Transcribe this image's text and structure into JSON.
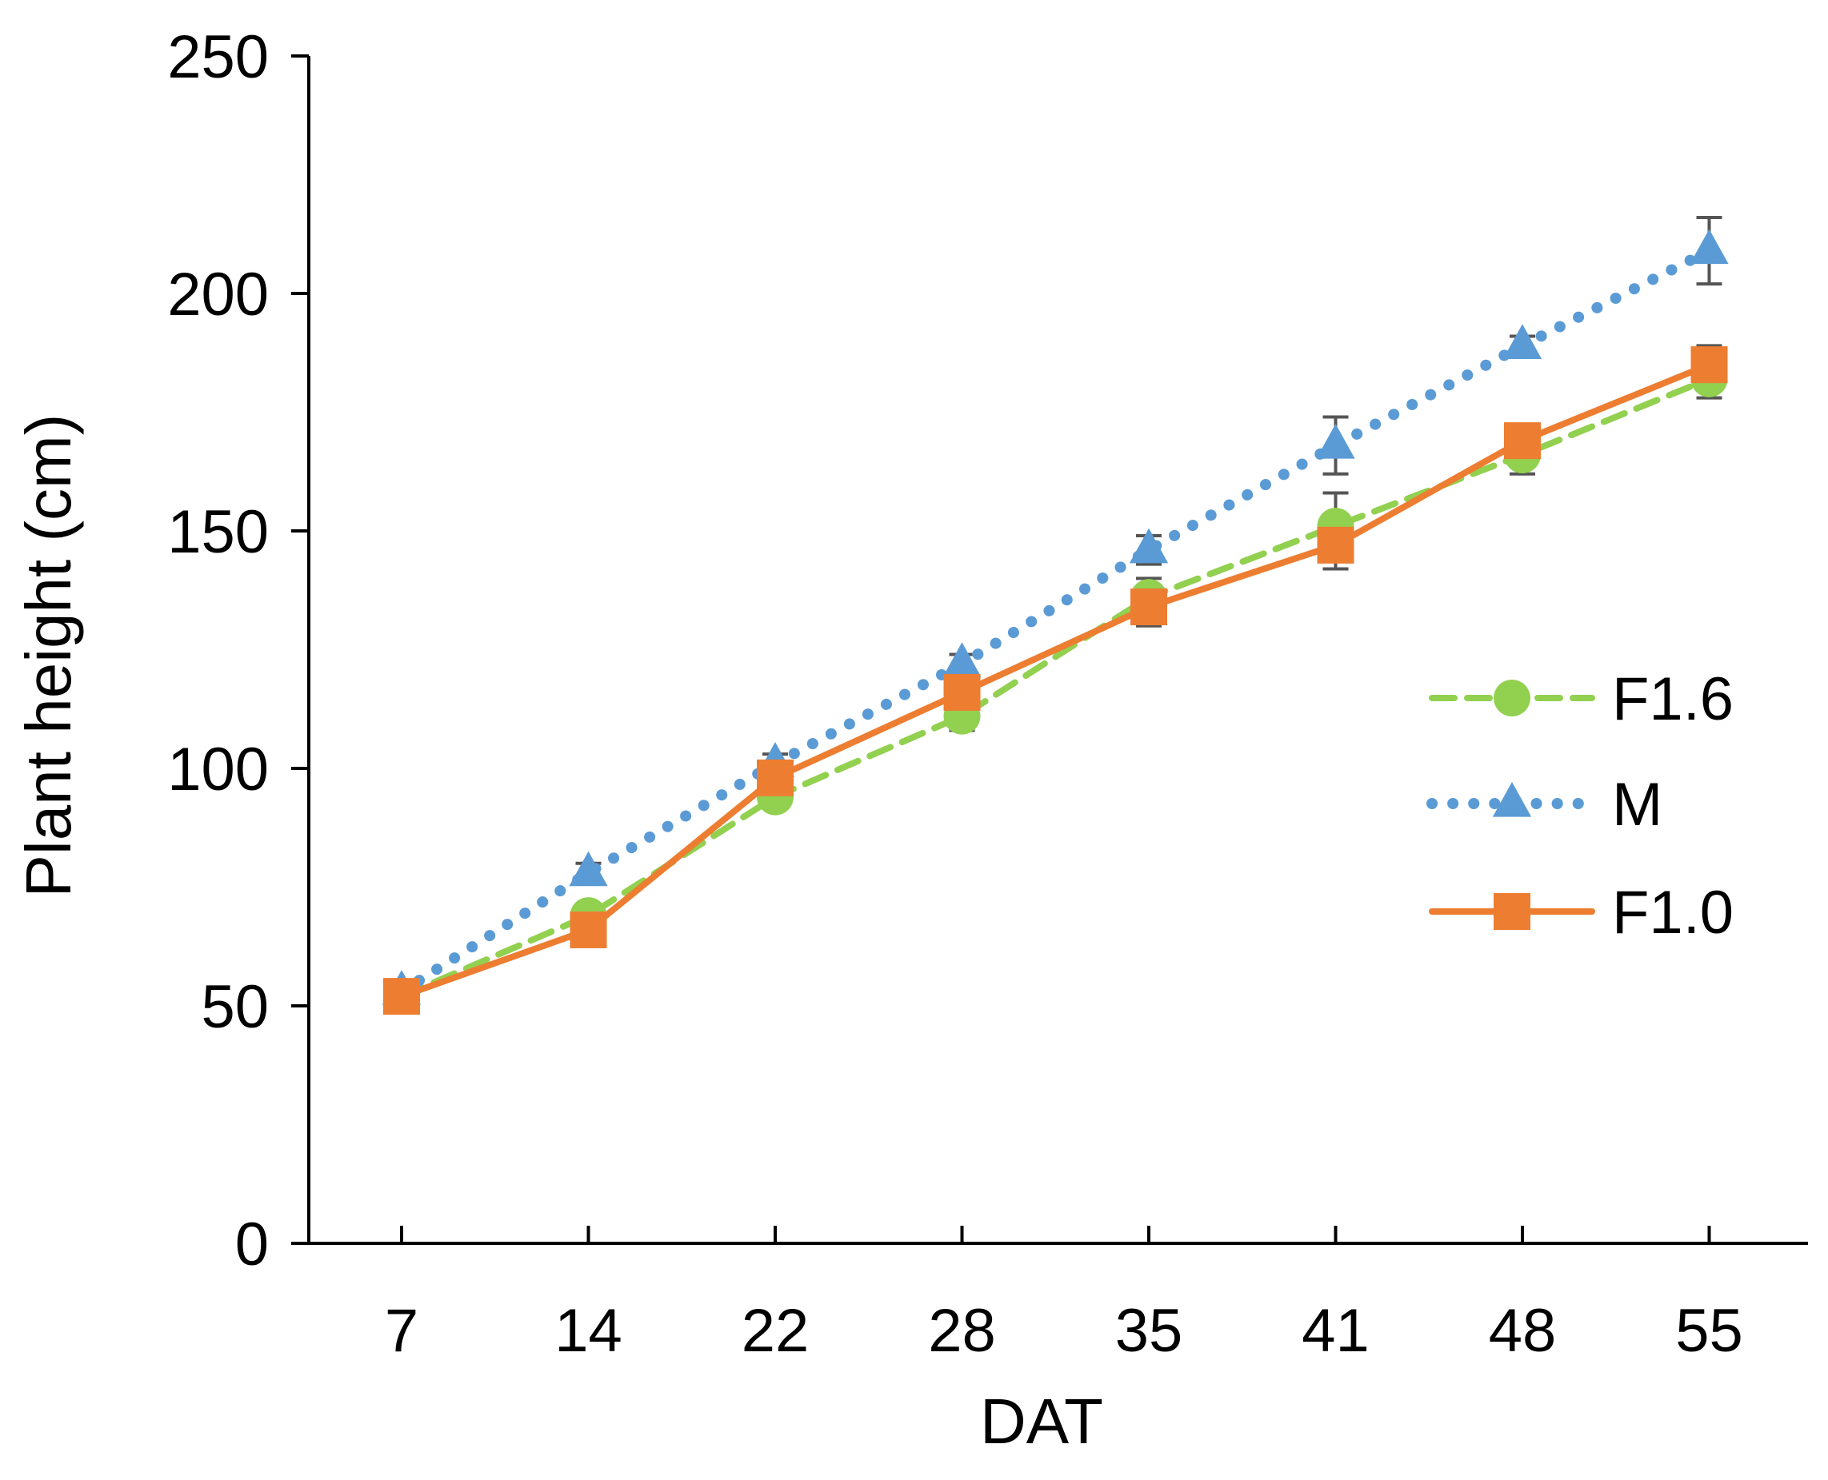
{
  "chart_data": {
    "type": "line",
    "title": "",
    "xlabel": "DAT",
    "ylabel": "Plant height (cm)",
    "categories": [
      "7",
      "14",
      "22",
      "28",
      "35",
      "41",
      "48",
      "55"
    ],
    "ylim": [
      0,
      250
    ],
    "yticks": [
      "0",
      "50",
      "100",
      "150",
      "200",
      "250"
    ],
    "grid": false,
    "legend_position": "right",
    "series": [
      {
        "name": "F1.6",
        "color": "#92d050",
        "line_style": "dashed",
        "marker": "circle",
        "values": [
          52,
          69,
          94,
          111,
          136,
          151,
          166,
          182
        ],
        "errors": [
          2,
          2,
          2,
          3,
          4,
          7,
          4,
          4
        ]
      },
      {
        "name": "M",
        "color": "#5b9bd5",
        "line_style": "dotted",
        "marker": "triangle",
        "values": [
          53,
          78,
          101,
          122,
          146,
          168,
          189,
          209
        ],
        "errors": [
          2,
          2,
          2,
          2,
          3,
          6,
          2,
          7
        ]
      },
      {
        "name": "F1.0",
        "color": "#ed7d31",
        "line_style": "solid",
        "marker": "square",
        "values": [
          52,
          66,
          98,
          116,
          134,
          147,
          169,
          185
        ],
        "errors": [
          2,
          2,
          2,
          3,
          4,
          5,
          3,
          4
        ]
      }
    ]
  }
}
